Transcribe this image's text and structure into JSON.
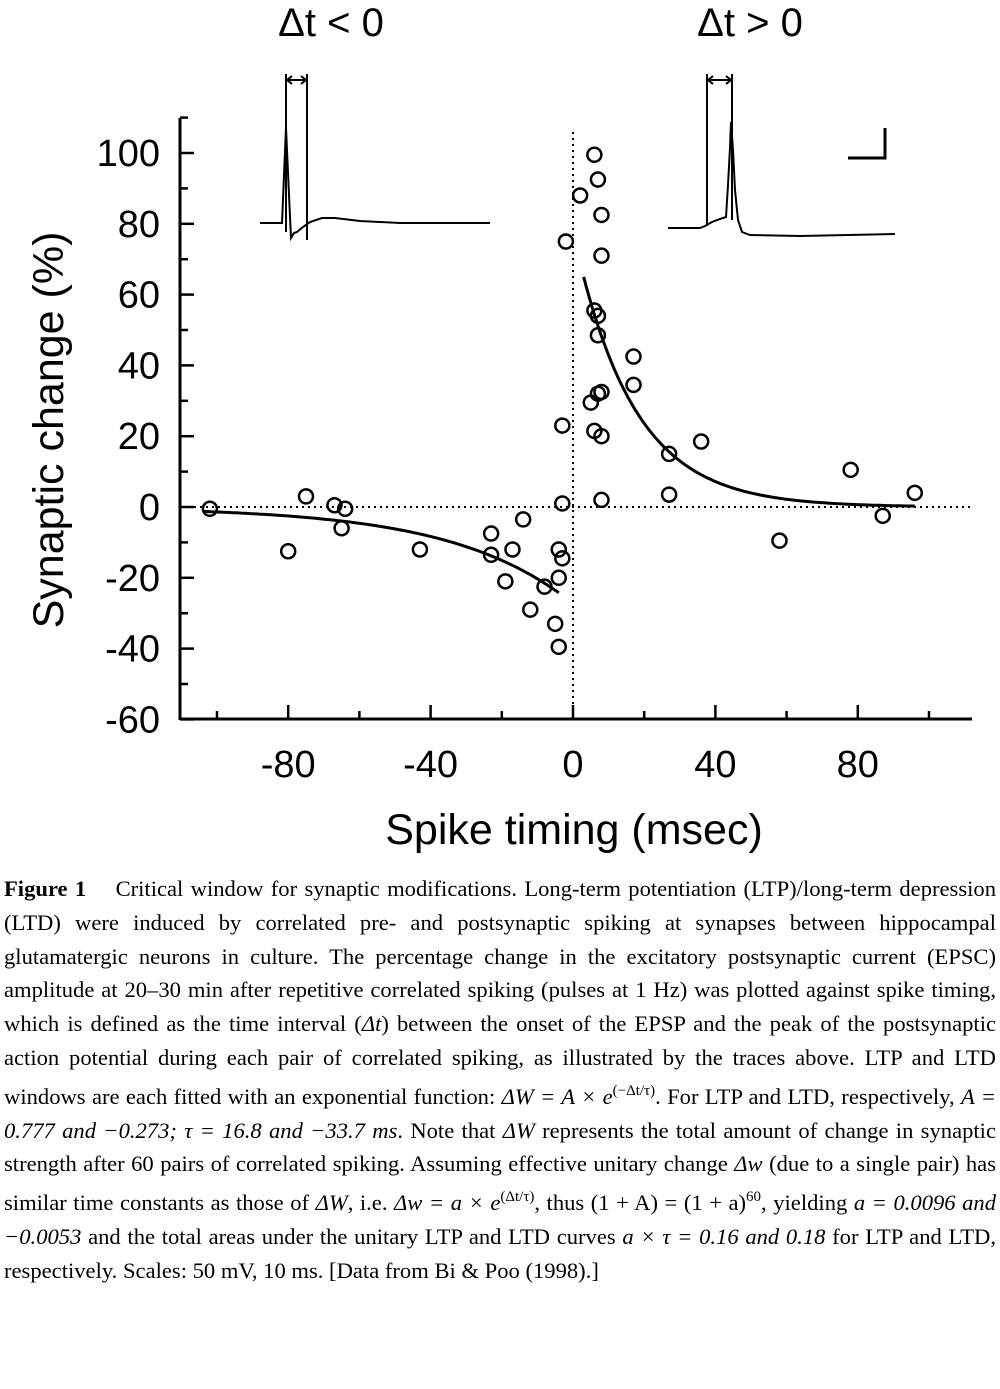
{
  "chart_data": {
    "type": "scatter",
    "xlabel": "Spike timing (msec)",
    "ylabel": "Synaptic change (%)",
    "xlim": [
      -104,
      104
    ],
    "ylim": [
      -60,
      110
    ],
    "xticks": [
      -80,
      -40,
      0,
      40,
      80
    ],
    "xtick_labels": [
      "-80",
      "-40",
      "0",
      "40",
      "80"
    ],
    "yticks": [
      100,
      80,
      60,
      40,
      20,
      0,
      -20,
      -40,
      -60
    ],
    "ytick_labels": [
      "100",
      "80",
      "60",
      "40",
      "20",
      "0",
      "-20",
      "-40",
      "-60"
    ],
    "zero_lines": true,
    "grid": false,
    "legend": "none",
    "trace_labels": [
      "Δt < 0",
      "Δt > 0"
    ],
    "points": [
      {
        "x": -102,
        "y": -0.5
      },
      {
        "x": -80,
        "y": -12.5
      },
      {
        "x": -75,
        "y": 3
      },
      {
        "x": -67,
        "y": 0.5
      },
      {
        "x": -65,
        "y": -6
      },
      {
        "x": -64,
        "y": -0.5
      },
      {
        "x": -43,
        "y": -12
      },
      {
        "x": -23,
        "y": -7.5
      },
      {
        "x": -23,
        "y": -13.5
      },
      {
        "x": -19,
        "y": -21
      },
      {
        "x": -17,
        "y": -12
      },
      {
        "x": -14,
        "y": -3.5
      },
      {
        "x": -12,
        "y": -29
      },
      {
        "x": -8,
        "y": -22.5
      },
      {
        "x": -5,
        "y": -33
      },
      {
        "x": -4,
        "y": -12
      },
      {
        "x": -4,
        "y": -39.5
      },
      {
        "x": -4,
        "y": -20
      },
      {
        "x": -3,
        "y": -14.5
      },
      {
        "x": -3,
        "y": 23
      },
      {
        "x": -3,
        "y": 1
      },
      {
        "x": -2,
        "y": 75
      },
      {
        "x": 2,
        "y": 88
      },
      {
        "x": 5,
        "y": 29.5
      },
      {
        "x": 6,
        "y": 99.5
      },
      {
        "x": 6,
        "y": 55.5
      },
      {
        "x": 6,
        "y": 21.5
      },
      {
        "x": 7,
        "y": 32
      },
      {
        "x": 7,
        "y": 54
      },
      {
        "x": 7,
        "y": 48.5
      },
      {
        "x": 7,
        "y": 92.5
      },
      {
        "x": 8,
        "y": 82.5
      },
      {
        "x": 8,
        "y": 71
      },
      {
        "x": 8,
        "y": 32.5
      },
      {
        "x": 8,
        "y": 20
      },
      {
        "x": 8,
        "y": 2
      },
      {
        "x": 17,
        "y": 42.5
      },
      {
        "x": 17,
        "y": 34.5
      },
      {
        "x": 27,
        "y": 15
      },
      {
        "x": 27,
        "y": 3.5
      },
      {
        "x": 36,
        "y": 18.5
      },
      {
        "x": 58,
        "y": -9.5
      },
      {
        "x": 78,
        "y": 10.5
      },
      {
        "x": 87,
        "y": -2.5
      },
      {
        "x": 96,
        "y": 4
      }
    ],
    "fits": [
      {
        "name": "LTP",
        "A": 0.777,
        "tau": 16.8,
        "x_range": [
          3,
          96
        ]
      },
      {
        "name": "LTD",
        "A": -0.273,
        "tau": -33.7,
        "x_range": [
          -104,
          -4
        ]
      }
    ]
  },
  "caption": {
    "figure_label": "Figure 1",
    "intro": "Critical window for synaptic modifications. Long-term potentiation (LTP)/long-term depression (LTD) were induced by correlated pre- and postsynaptic spiking at synapses between hippocampal glutamatergic neurons in culture. The percentage change in the excitatory postsynaptic current (EPSC) amplitude at 20–30 min after repetitive correlated spiking (pulses at 1 Hz) was plotted against spike timing, which is defined as the time interval (",
    "interval_symbol": "Δt",
    "mid1": ") between the onset of the EPSP and the peak of the postsynaptic action potential during each pair of correlated spiking, as illustrated by the traces above. LTP and LTD windows are each fitted with an exponential function: ",
    "eq1_lhs": "ΔW = A × e",
    "eq1_exp": "(−Δt/τ)",
    "mid2": ". For LTP and LTD, respectively, ",
    "params": "A = 0.777 and −0.273; τ = 16.8 and −33.7 ms",
    "mid3": ". Note that ",
    "dW": "ΔW",
    "mid4": " represents the total amount of change in synaptic strength after 60 pairs of correlated spiking. Assuming effective unitary change ",
    "dw": "Δw",
    "mid5": " (due to a single pair) has similar time constants as those of ",
    "dW2": "ΔW",
    "mid6": ", i.e. ",
    "eq2_lhs": "Δw = a × e",
    "eq2_exp": "(Δt/τ)",
    "mid7": ", thus ",
    "eq3": "(1 + A) = (1 + a)",
    "eq3_exp": "60",
    "mid8": ", yielding ",
    "eq4": "a = 0.0096 and −0.0053",
    "mid9": " and the total areas under the unitary LTP and LTD curves ",
    "eq5": "a × τ = 0.16 and 0.18",
    "ending": " for LTP and LTD, respectively. Scales: 50 mV, 10 ms. [Data from Bi & Poo (1998).]"
  }
}
